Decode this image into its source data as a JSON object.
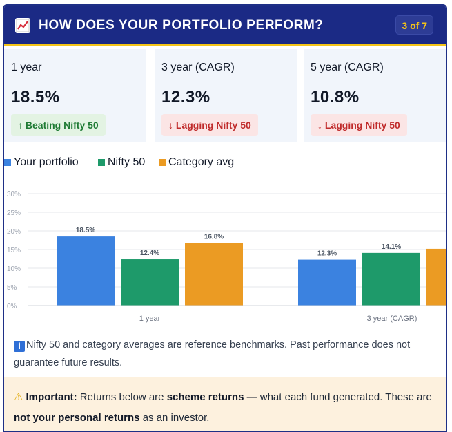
{
  "header": {
    "title": "HOW DOES YOUR PORTFOLIO PERFORM?",
    "page_indicator": "3 of 7",
    "icon": "chart-trend-icon"
  },
  "stats": [
    {
      "period": "1 year",
      "value": "18.5%",
      "status": "↑ Beating Nifty 50",
      "status_type": "good"
    },
    {
      "period": "3 year (CAGR)",
      "value": "12.3%",
      "status": "↓ Lagging Nifty 50",
      "status_type": "bad"
    },
    {
      "period": "5 year (CAGR)",
      "value": "10.8%",
      "status": "↓ Lagging Nifty 50",
      "status_type": "bad"
    }
  ],
  "legend": [
    {
      "label": "Your portfolio",
      "color": "#3b82e0"
    },
    {
      "label": "Nifty 50",
      "color": "#1e9a6a"
    },
    {
      "label": "Category avg",
      "color": "#eb9b23"
    }
  ],
  "chart_data": {
    "type": "bar",
    "categories": [
      "1 year",
      "3 year (CAGR)"
    ],
    "series": [
      {
        "name": "Your portfolio",
        "values": [
          18.5,
          12.3
        ],
        "color": "#3b82e0"
      },
      {
        "name": "Nifty 50",
        "values": [
          12.4,
          14.1
        ],
        "color": "#1e9a6a"
      },
      {
        "name": "Category avg",
        "values": [
          16.8,
          null
        ],
        "color": "#eb9b23"
      }
    ],
    "data_labels": [
      [
        "18.5%",
        "12.3%"
      ],
      [
        "12.4%",
        "14.1%"
      ],
      [
        "16.8%",
        ""
      ]
    ],
    "y_ticks": [
      "0%",
      "5%",
      "10%",
      "15%",
      "20%",
      "25%",
      "30%"
    ],
    "ylim": [
      0,
      30
    ],
    "grid": true,
    "legend_position": "top-left"
  },
  "info": {
    "icon": "info-icon",
    "text": "Nifty 50 and category averages are reference benchmarks. Past performance does not guarantee future results."
  },
  "warning": {
    "icon": "warning-icon",
    "label": "Important:",
    "text1": " Returns below are ",
    "bold1": "scheme returns —",
    "text2": " what each fund generated. These are ",
    "bold2": "not your personal returns",
    "text3": " as an investor."
  }
}
